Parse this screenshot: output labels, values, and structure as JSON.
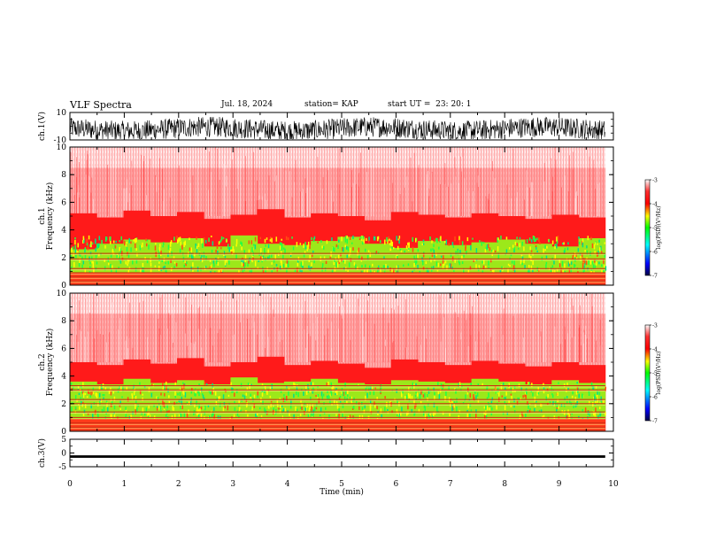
{
  "header": {
    "title": "VLF Spectra",
    "date": "Jul. 18, 2024",
    "station": "station= KAP",
    "start": "start UT =  23: 20: 1"
  },
  "chart_data": [
    {
      "type": "line",
      "panel": "ch1-waveform",
      "ylabel": "ch.1(V)",
      "ylim": [
        -10,
        10
      ],
      "yticklabels": [
        "10",
        "-10"
      ],
      "xlim": [
        0,
        10
      ],
      "x_unit": "min",
      "description_values": "dense noisy waveform spanning roughly -8 to +10 V across 0-9.85 min",
      "color": "#000000"
    },
    {
      "type": "heatmap",
      "panel": "ch1-spectrogram",
      "ylabel": "ch.1\nFrequency (kHz)",
      "ylim": [
        0,
        10
      ],
      "yticklabels": [
        "0",
        "2",
        "4",
        "6",
        "8",
        "10"
      ],
      "xlim": [
        0,
        10
      ],
      "data_xmax": 9.85,
      "dominant_color_above": "red",
      "green_band_top_khz": [
        2.6,
        3.0,
        3.3,
        3.1,
        3.4,
        2.8,
        3.6,
        3.0,
        2.9,
        3.2,
        3.5,
        3.0,
        2.7,
        3.2,
        2.9,
        3.1,
        3.3,
        3.0,
        2.8,
        3.4
      ],
      "red_upper_edge_khz": [
        5.2,
        4.9,
        5.4,
        5.0,
        5.3,
        4.8,
        5.1,
        5.5,
        4.9,
        5.2,
        5.0,
        4.7,
        5.3,
        5.1,
        4.9,
        5.2,
        5.0,
        4.8,
        5.1,
        4.9
      ],
      "horizontal_lines_khz": [
        0.3,
        0.6,
        0.9,
        1.2,
        1.9,
        2.3
      ]
    },
    {
      "type": "heatmap",
      "panel": "ch2-spectrogram",
      "ylabel": "ch.2\nFrequency (kHz)",
      "ylim": [
        0,
        10
      ],
      "yticklabels": [
        "0",
        "2",
        "4",
        "6",
        "8",
        "10"
      ],
      "xlim": [
        0,
        10
      ],
      "data_xmax": 9.85,
      "dominant_color_above": "red",
      "green_band_top_khz": [
        3.6,
        3.4,
        3.8,
        3.5,
        3.7,
        3.4,
        3.9,
        3.5,
        3.6,
        3.8,
        3.5,
        3.4,
        3.7,
        3.6,
        3.5,
        3.8,
        3.6,
        3.4,
        3.7,
        3.5
      ],
      "red_upper_edge_khz": [
        5.0,
        4.8,
        5.2,
        4.9,
        5.3,
        4.7,
        5.0,
        5.4,
        4.8,
        5.1,
        4.9,
        4.6,
        5.2,
        5.0,
        4.8,
        5.1,
        4.9,
        4.7,
        5.0,
        4.8
      ],
      "horizontal_lines_khz": [
        0.3,
        0.6,
        1.0,
        1.4,
        2.0,
        2.3,
        3.0,
        3.3
      ]
    },
    {
      "type": "line",
      "panel": "ch3-waveform",
      "ylabel": "ch.3(V)",
      "ylim": [
        -5,
        5
      ],
      "yticklabels": [
        "5",
        "0",
        "-5"
      ],
      "xlim": [
        0,
        10
      ],
      "xlabel": "Time (min)",
      "xticklabels": [
        "0",
        "1",
        "2",
        "3",
        "4",
        "5",
        "6",
        "7",
        "8",
        "9",
        "10"
      ],
      "constant_value_v": -1.3,
      "band_half_width_v": 0.45,
      "color": "#000000"
    }
  ],
  "colorbar": {
    "label": "log(PSD)(V²/Hz)",
    "range": [
      -7,
      -3
    ],
    "ticklabels": [
      "-3",
      "-4",
      "-5",
      "-6",
      "-7"
    ],
    "colors": [
      "#000044",
      "#0000ff",
      "#00ffff",
      "#00ff00",
      "#ffff00",
      "#ff0000",
      "#ffffff"
    ]
  }
}
